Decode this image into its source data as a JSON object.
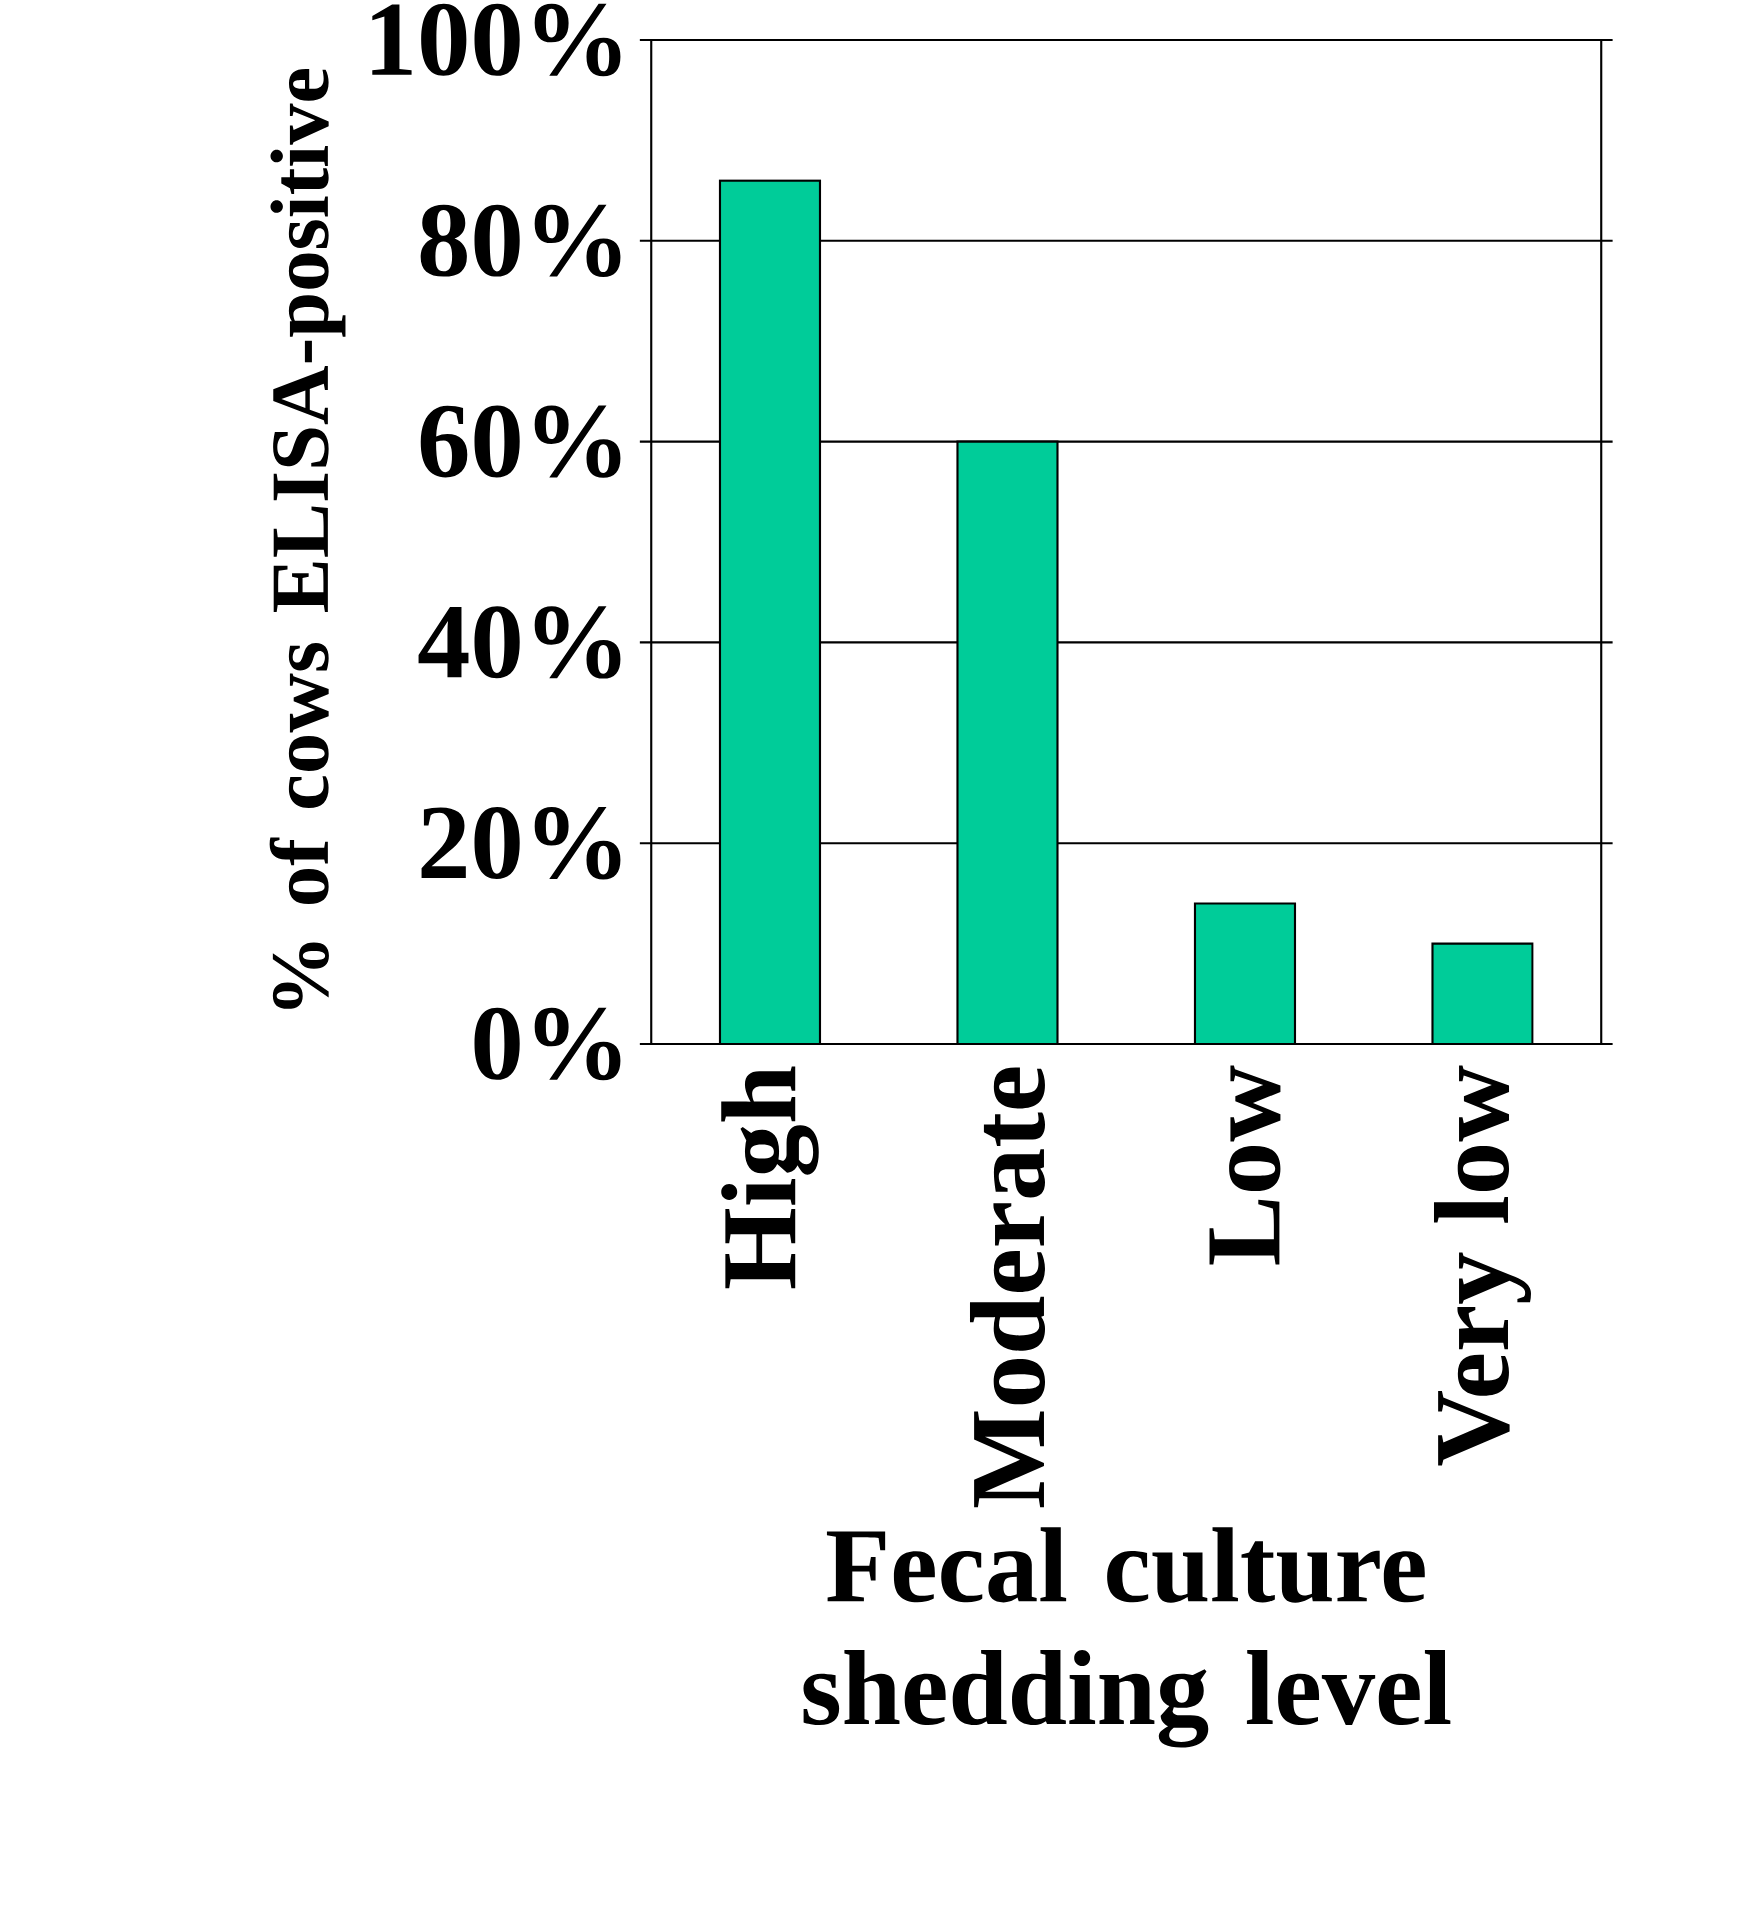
{
  "chart_data": {
    "type": "bar",
    "xlabel": "Fecal culture shedding level",
    "ylabel": "% of cows ELISA-positive",
    "categories": [
      "High",
      "Moderate",
      "Low",
      "Very low"
    ],
    "values": [
      86,
      60,
      14,
      10
    ],
    "color": "#00cc99",
    "ylim": [
      0,
      100
    ],
    "yticks": [
      {
        "value": 0,
        "label": "0%"
      },
      {
        "value": 20,
        "label": "20%"
      },
      {
        "value": 40,
        "label": "40%"
      },
      {
        "value": 60,
        "label": "60%"
      },
      {
        "value": 80,
        "label": "80%"
      },
      {
        "value": 100,
        "label": "100%"
      }
    ],
    "grid": "y"
  }
}
